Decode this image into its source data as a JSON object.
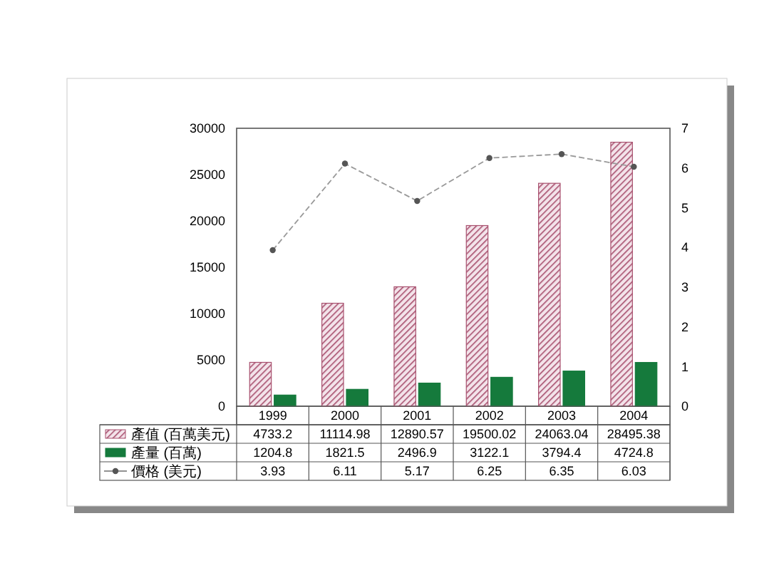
{
  "chart_data": {
    "type": "bar",
    "categories": [
      "1999",
      "2000",
      "2001",
      "2002",
      "2003",
      "2004"
    ],
    "series": [
      {
        "name": "產值 (百萬美元)",
        "color": "#a8506e",
        "values": [
          4733.2,
          11114.98,
          12890.57,
          19500.02,
          24063.04,
          28495.38
        ]
      },
      {
        "name": "產量 (百萬)",
        "color": "#157a3c",
        "values": [
          1204.8,
          1821.5,
          2496.9,
          3122.1,
          3794.4,
          4724.8
        ]
      },
      {
        "name": "價格 (美元)",
        "type": "line",
        "axis": "y2",
        "color": "#555555",
        "values": [
          3.93,
          6.11,
          5.17,
          6.25,
          6.35,
          6.03
        ],
        "marker": "circle",
        "line_style": "dashed"
      }
    ],
    "ylim": [
      0,
      30000
    ],
    "yticks": [
      0,
      5000,
      10000,
      15000,
      20000,
      25000,
      30000
    ],
    "y2lim": [
      0,
      7
    ],
    "y2ticks": [
      0,
      1,
      2,
      3,
      4,
      5,
      6,
      7
    ],
    "data_labels": true,
    "legend": "bottom",
    "grid": false
  }
}
